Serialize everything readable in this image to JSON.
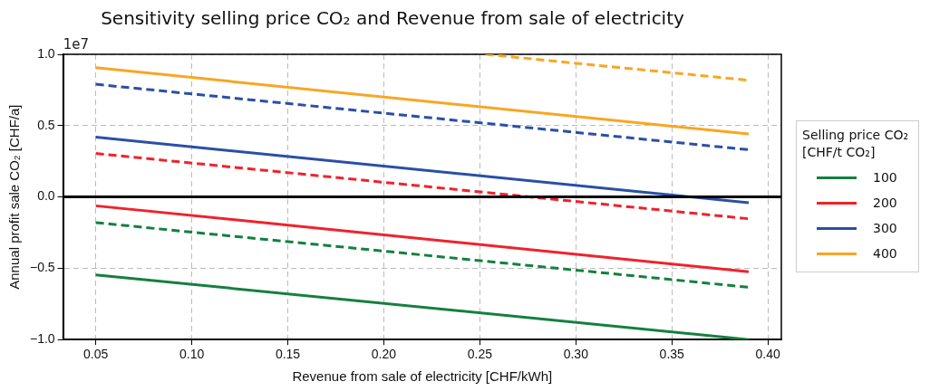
{
  "chart_data": {
    "type": "line",
    "title": "Sensitivity selling price CO₂ and Revenue from sale of electricity",
    "xlabel": "Revenue from sale of electricity [CHF/kWh]",
    "ylabel": "Annual profit sale CO₂ [CHF/a]",
    "legend_title": "Selling price CO₂\n[CHF/t CO₂]",
    "legend": "right",
    "grid": true,
    "marker": "none",
    "annotations": [
      "1e7"
    ],
    "xlim": [
      0.033,
      0.407
    ],
    "xticks": [
      {
        "value": 0.05,
        "label": "0.05"
      },
      {
        "value": 0.1,
        "label": "0.10"
      },
      {
        "value": 0.15,
        "label": "0.15"
      },
      {
        "value": 0.2,
        "label": "0.20"
      },
      {
        "value": 0.25,
        "label": "0.25"
      },
      {
        "value": 0.3,
        "label": "0.30"
      },
      {
        "value": 0.35,
        "label": "0.35"
      },
      {
        "value": 0.4,
        "label": "0.40"
      }
    ],
    "ylim": [
      -1,
      1
    ],
    "yticks": [
      {
        "value": -1,
        "label": "−1.0"
      },
      {
        "value": -0.5,
        "label": "−0.5"
      },
      {
        "value": 0,
        "label": "0.0"
      },
      {
        "value": 0.5,
        "label": "0.5"
      },
      {
        "value": 1,
        "label": "1.0"
      }
    ],
    "ref_lines": [
      {
        "axis": "y",
        "value": 0,
        "color": "#000000",
        "line_style": "solid"
      }
    ],
    "series": [
      {
        "name": "100",
        "color": "#15803f",
        "line_style": "solid",
        "x": [
          0.05,
          0.39
        ],
        "values": [
          -0.546,
          -1.0
        ]
      },
      {
        "name": "200",
        "color": "#f0222c",
        "line_style": "solid",
        "x": [
          0.05,
          0.39
        ],
        "values": [
          -0.062,
          -0.524
        ]
      },
      {
        "name": "300",
        "color": "#2a4fa6",
        "line_style": "solid",
        "x": [
          0.05,
          0.39
        ],
        "values": [
          0.419,
          -0.04
        ]
      },
      {
        "name": "400",
        "color": "#f8a623",
        "line_style": "solid",
        "x": [
          0.05,
          0.39
        ],
        "values": [
          0.906,
          0.441
        ]
      },
      {
        "color": "#15803f",
        "line_style": "dashed",
        "x": [
          0.05,
          0.39
        ],
        "values": [
          -0.18,
          -0.633
        ]
      },
      {
        "color": "#f0222c",
        "line_style": "dashed",
        "x": [
          0.05,
          0.39
        ],
        "values": [
          0.305,
          -0.153
        ]
      },
      {
        "color": "#2a4fa6",
        "line_style": "dashed",
        "x": [
          0.05,
          0.39
        ],
        "values": [
          0.79,
          0.331
        ]
      },
      {
        "color": "#f8a623",
        "line_style": "dashed",
        "x": [
          0.253,
          0.39
        ],
        "values": [
          1.0,
          0.818
        ]
      }
    ]
  }
}
